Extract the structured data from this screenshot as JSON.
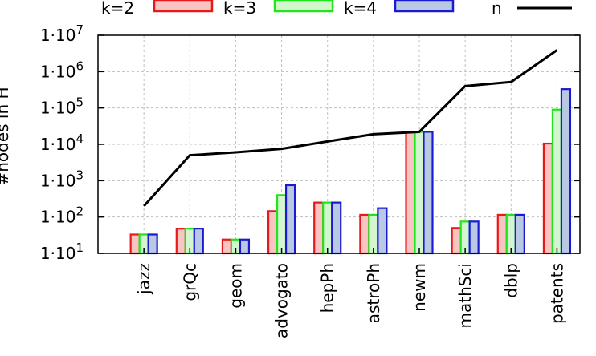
{
  "chart_data": {
    "type": "bar",
    "ylabel": "#nodes in H",
    "yscale": "log",
    "ylim": [
      10,
      10000000
    ],
    "grid": true,
    "categories": [
      "jazz",
      "grQc",
      "geom",
      "advogato",
      "hepPh",
      "astroPh",
      "newm",
      "mathSci",
      "dblp",
      "patents"
    ],
    "yticks": [
      {
        "value": 10,
        "base": "1·10",
        "exp": "1"
      },
      {
        "value": 100,
        "base": "1·10",
        "exp": "2"
      },
      {
        "value": 1000,
        "base": "1·10",
        "exp": "3"
      },
      {
        "value": 10000,
        "base": "1·10",
        "exp": "4"
      },
      {
        "value": 100000,
        "base": "1·10",
        "exp": "5"
      },
      {
        "value": 1000000,
        "base": "1·10",
        "exp": "6"
      },
      {
        "value": 10000000,
        "base": "1·10",
        "exp": "7"
      }
    ],
    "series": [
      {
        "name": "k=2",
        "kind": "bar",
        "stroke": "#e8191b",
        "fill": "#f9c4c2",
        "values": [
          33,
          48,
          24,
          145,
          250,
          115,
          22000,
          50,
          115,
          10500
        ]
      },
      {
        "name": "k=3",
        "kind": "bar",
        "stroke": "#22e41d",
        "fill": "#d3f5cf",
        "values": [
          33,
          48,
          24,
          400,
          250,
          115,
          22000,
          75,
          115,
          90000
        ]
      },
      {
        "name": "k=4",
        "kind": "bar",
        "stroke": "#1a1ad2",
        "fill": "#b9c9e3",
        "values": [
          33,
          48,
          24,
          750,
          250,
          175,
          22000,
          75,
          115,
          330000
        ]
      },
      {
        "name": "n",
        "kind": "line",
        "stroke": "#000000",
        "values": [
          200,
          5000,
          6000,
          7500,
          12000,
          19000,
          22000,
          400000,
          520000,
          3900000
        ]
      }
    ]
  }
}
